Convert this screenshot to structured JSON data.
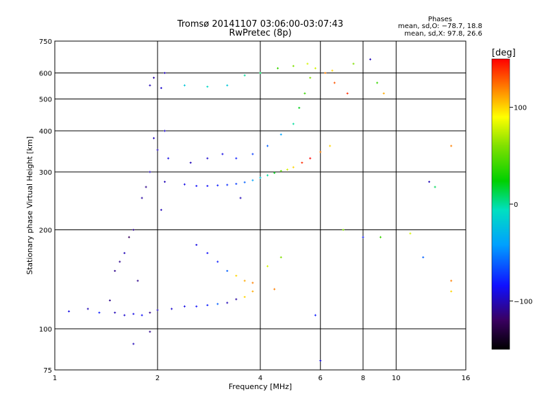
{
  "title_line1": "Tromsø 20141107 03:06:00-03:07:43",
  "title_line2": "RwPretec (8p)",
  "phases_header": "Phases",
  "phases_o": "mean, sd,O: −78.7, 18.8",
  "phases_x": "mean, sd,X:  97.8, 26.6",
  "colorbar_unit": "[deg]",
  "colorbar_ticks": [
    "100",
    "0",
    "−100"
  ],
  "chart_data": {
    "type": "scatter",
    "xlabel": "Frequency [MHz]",
    "ylabel": "Stationary phase Virtual Height [km]",
    "x_scale": "log",
    "y_scale": "log",
    "xlim": [
      1,
      16
    ],
    "ylim": [
      75,
      750
    ],
    "x_ticks": [
      1,
      2,
      4,
      6,
      8,
      10,
      16
    ],
    "x_tick_labels": [
      "1",
      "2",
      "4",
      "6",
      "8",
      "10",
      "16"
    ],
    "y_ticks": [
      75,
      100,
      200,
      300,
      400,
      500,
      600,
      750
    ],
    "y_tick_labels": [
      "75",
      "100",
      "200",
      "300",
      "400",
      "500",
      "600",
      "750"
    ],
    "grid": true,
    "colorbar": {
      "label": "[deg]",
      "range": [
        -150,
        150
      ],
      "ticks": [
        100,
        0,
        -100
      ]
    },
    "series": [
      {
        "points": [
          [
            1.1,
            113,
            -90
          ],
          [
            1.25,
            115,
            -100
          ],
          [
            1.35,
            112,
            -80
          ],
          [
            1.45,
            122,
            -110
          ],
          [
            1.5,
            112,
            -100
          ],
          [
            1.6,
            110,
            -95
          ],
          [
            1.7,
            111,
            -90
          ],
          [
            1.8,
            110,
            -85
          ],
          [
            1.9,
            112,
            -110
          ],
          [
            2.0,
            114,
            -100
          ],
          [
            2.2,
            115,
            -95
          ],
          [
            2.4,
            117,
            -90
          ],
          [
            2.6,
            117,
            -85
          ],
          [
            2.8,
            118,
            -80
          ],
          [
            3.0,
            119,
            -60
          ],
          [
            3.2,
            120,
            -100
          ],
          [
            3.4,
            123,
            -105
          ],
          [
            3.6,
            125,
            100
          ],
          [
            3.8,
            130,
            110
          ],
          [
            4.4,
            132,
            120
          ],
          [
            1.5,
            150,
            -110
          ],
          [
            1.6,
            170,
            -100
          ],
          [
            1.7,
            200,
            -110
          ],
          [
            1.8,
            250,
            -105
          ],
          [
            1.9,
            300,
            -100
          ],
          [
            2.0,
            350,
            -100
          ],
          [
            2.1,
            400,
            -95
          ],
          [
            1.75,
            140,
            -110
          ],
          [
            1.65,
            190,
            -120
          ],
          [
            1.55,
            160,
            -110
          ],
          [
            2.05,
            230,
            -100
          ],
          [
            2.1,
            280,
            -100
          ],
          [
            2.15,
            330,
            -90
          ],
          [
            1.85,
            270,
            -110
          ],
          [
            1.95,
            380,
            -100
          ],
          [
            1.9,
            550,
            -100
          ],
          [
            1.95,
            580,
            -105
          ],
          [
            2.05,
            540,
            -95
          ],
          [
            2.1,
            600,
            -100
          ],
          [
            2.4,
            275,
            -90
          ],
          [
            2.6,
            272,
            -85
          ],
          [
            2.8,
            272,
            -85
          ],
          [
            3.0,
            273,
            -80
          ],
          [
            3.2,
            274,
            -75
          ],
          [
            3.4,
            276,
            -70
          ],
          [
            3.6,
            279,
            -60
          ],
          [
            3.8,
            283,
            -40
          ],
          [
            4.0,
            288,
            -20
          ],
          [
            4.2,
            293,
            0
          ],
          [
            4.4,
            298,
            20
          ],
          [
            4.6,
            302,
            50
          ],
          [
            4.8,
            305,
            80
          ],
          [
            5.0,
            310,
            100
          ],
          [
            5.3,
            320,
            140
          ],
          [
            5.6,
            330,
            160
          ],
          [
            6.0,
            345,
            120
          ],
          [
            6.4,
            360,
            100
          ],
          [
            2.5,
            320,
            -100
          ],
          [
            2.8,
            330,
            -95
          ],
          [
            3.1,
            340,
            -90
          ],
          [
            3.4,
            330,
            -80
          ],
          [
            3.8,
            340,
            -70
          ],
          [
            4.2,
            360,
            -60
          ],
          [
            4.6,
            390,
            -40
          ],
          [
            5.0,
            420,
            0
          ],
          [
            5.2,
            470,
            20
          ],
          [
            5.4,
            520,
            40
          ],
          [
            5.6,
            580,
            60
          ],
          [
            5.8,
            620,
            80
          ],
          [
            6.2,
            600,
            120
          ],
          [
            6.6,
            560,
            130
          ],
          [
            7.2,
            520,
            140
          ],
          [
            2.4,
            550,
            -20
          ],
          [
            2.8,
            545,
            -10
          ],
          [
            3.2,
            550,
            -20
          ],
          [
            3.6,
            590,
            0
          ],
          [
            4.0,
            600,
            10
          ],
          [
            4.5,
            620,
            40
          ],
          [
            5.0,
            630,
            60
          ],
          [
            5.5,
            640,
            80
          ],
          [
            6.5,
            610,
            100
          ],
          [
            7.5,
            640,
            60
          ],
          [
            8.4,
            660,
            -100
          ],
          [
            8.8,
            560,
            40
          ],
          [
            9.2,
            520,
            110
          ],
          [
            2.6,
            180,
            -90
          ],
          [
            2.8,
            170,
            -85
          ],
          [
            3.0,
            160,
            -80
          ],
          [
            3.2,
            150,
            -60
          ],
          [
            3.4,
            145,
            100
          ],
          [
            3.6,
            140,
            110
          ],
          [
            3.8,
            138,
            120
          ],
          [
            4.2,
            155,
            80
          ],
          [
            4.6,
            165,
            60
          ],
          [
            3.5,
            250,
            -100
          ],
          [
            5.8,
            110,
            -80
          ],
          [
            6.0,
            80,
            -90
          ],
          [
            1.7,
            90,
            -100
          ],
          [
            1.9,
            98,
            -110
          ],
          [
            11,
            195,
            80
          ],
          [
            12,
            165,
            -60
          ],
          [
            12.5,
            280,
            -100
          ],
          [
            13,
            270,
            10
          ],
          [
            14.5,
            140,
            120
          ],
          [
            14.5,
            130,
            100
          ],
          [
            14.5,
            360,
            120
          ],
          [
            7.0,
            200,
            60
          ],
          [
            8.0,
            190,
            -80
          ],
          [
            9.0,
            190,
            40
          ]
        ]
      }
    ]
  }
}
